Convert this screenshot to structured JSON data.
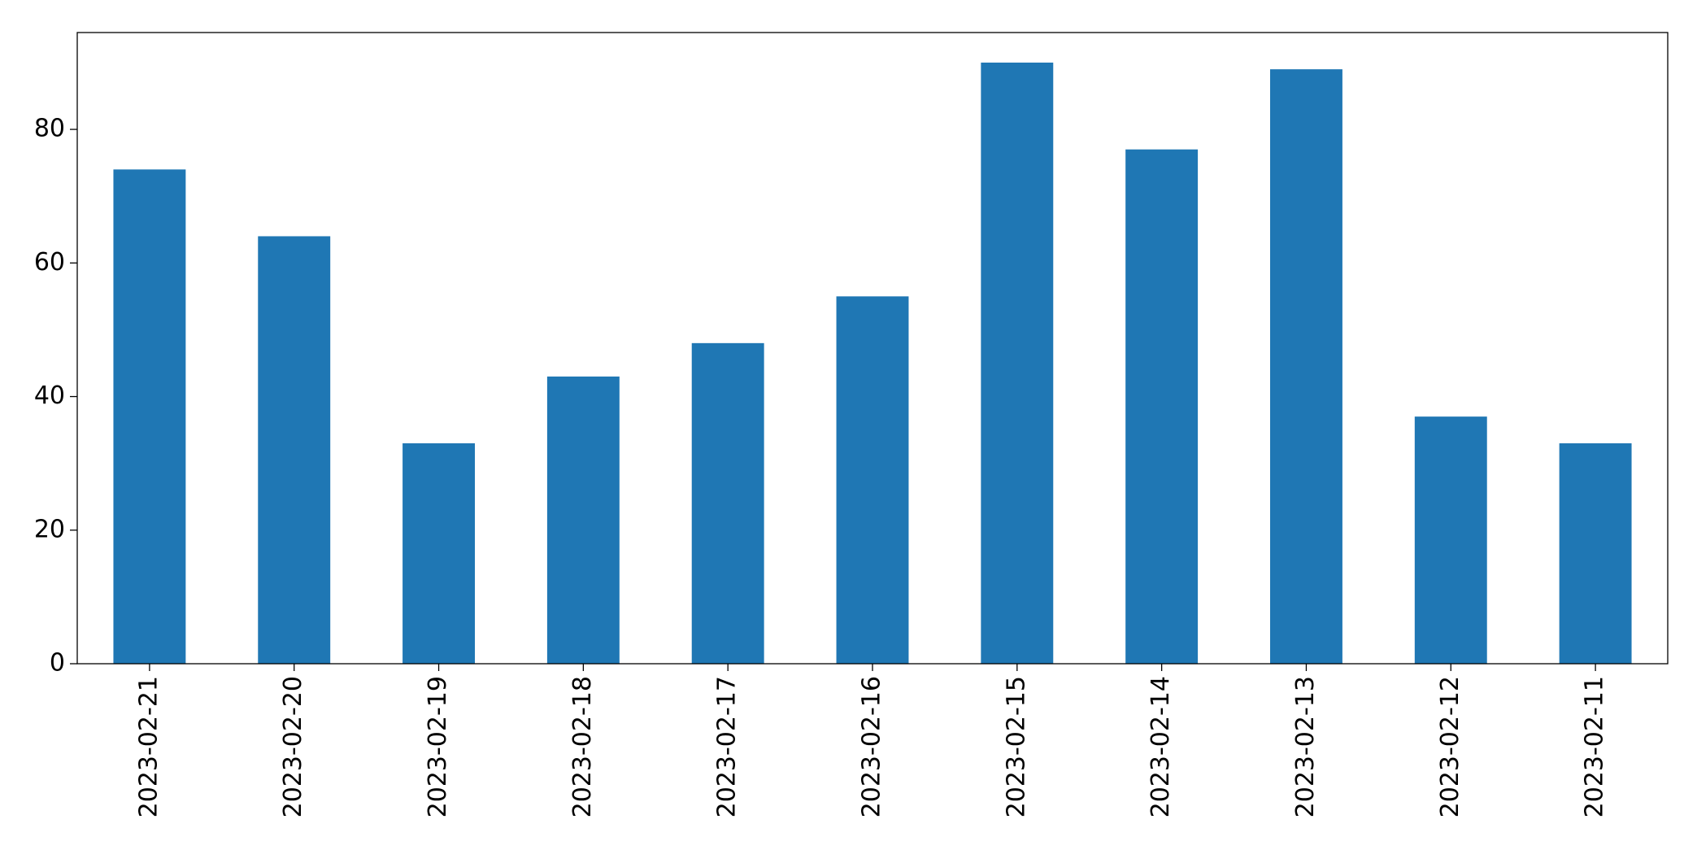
{
  "chart_data": {
    "type": "bar",
    "categories": [
      "2023-02-21",
      "2023-02-20",
      "2023-02-19",
      "2023-02-18",
      "2023-02-17",
      "2023-02-16",
      "2023-02-15",
      "2023-02-14",
      "2023-02-13",
      "2023-02-12",
      "2023-02-11"
    ],
    "values": [
      74,
      64,
      33,
      43,
      48,
      55,
      90,
      77,
      89,
      37,
      33
    ],
    "color": "#1f77b4",
    "ylim": [
      0,
      94.5
    ],
    "yticks": [
      0,
      20,
      40,
      60,
      80
    ],
    "grid": false
  }
}
